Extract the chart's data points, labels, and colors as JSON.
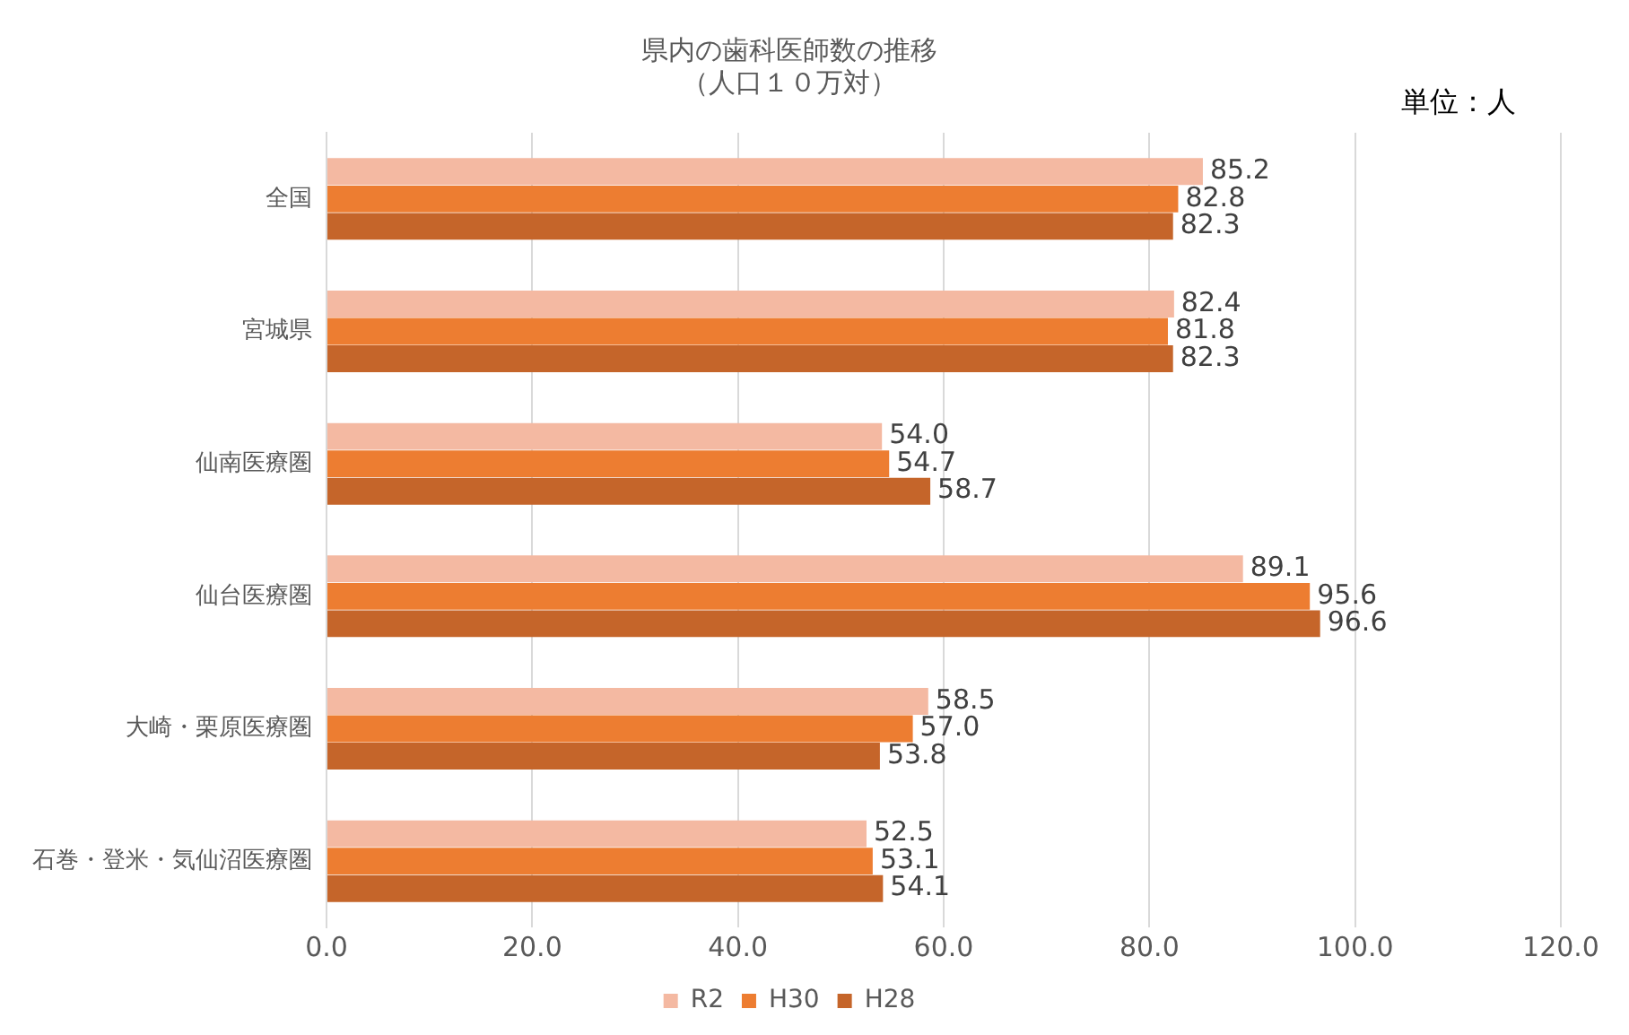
{
  "chart_data": {
    "type": "bar",
    "orientation": "horizontal",
    "title": "県内の歯科医師数の推移",
    "subtitle": "（人口１０万対）",
    "annotations": [
      "単位：人"
    ],
    "categories": [
      "全国",
      "宮城県",
      "仙南医療圏",
      "仙台医療圏",
      "大崎・栗原医療圏",
      "石巻・登米・気仙沼医療圏"
    ],
    "series": [
      {
        "name": "R2",
        "color": "#f4b9a2",
        "values": [
          85.2,
          82.4,
          54.0,
          89.1,
          58.5,
          52.5
        ],
        "value_labels": [
          "85.2",
          "82.4",
          "54.0",
          "89.1",
          "58.5",
          "52.5"
        ]
      },
      {
        "name": "H30",
        "color": "#ed7d31",
        "values": [
          82.8,
          81.8,
          54.7,
          95.6,
          57.0,
          53.1
        ],
        "value_labels": [
          "82.8",
          "81.8",
          "54.7",
          "95.6",
          "57.0",
          "53.1"
        ]
      },
      {
        "name": "H28",
        "color": "#c5652a",
        "values": [
          82.3,
          82.3,
          58.7,
          96.6,
          53.8,
          54.1
        ],
        "value_labels": [
          "82.3",
          "82.3",
          "58.7",
          "96.6",
          "53.8",
          "54.1"
        ]
      }
    ],
    "xlim": [
      0,
      120
    ],
    "xticks": [
      {
        "value": 0,
        "label": "0.0"
      },
      {
        "value": 20,
        "label": "20.0"
      },
      {
        "value": 40,
        "label": "40.0"
      },
      {
        "value": 60,
        "label": "60.0"
      },
      {
        "value": 80,
        "label": "80.0"
      },
      {
        "value": 100,
        "label": "100.0"
      },
      {
        "value": 120,
        "label": "120.0"
      }
    ],
    "grid": "x",
    "legend": "bottom"
  }
}
